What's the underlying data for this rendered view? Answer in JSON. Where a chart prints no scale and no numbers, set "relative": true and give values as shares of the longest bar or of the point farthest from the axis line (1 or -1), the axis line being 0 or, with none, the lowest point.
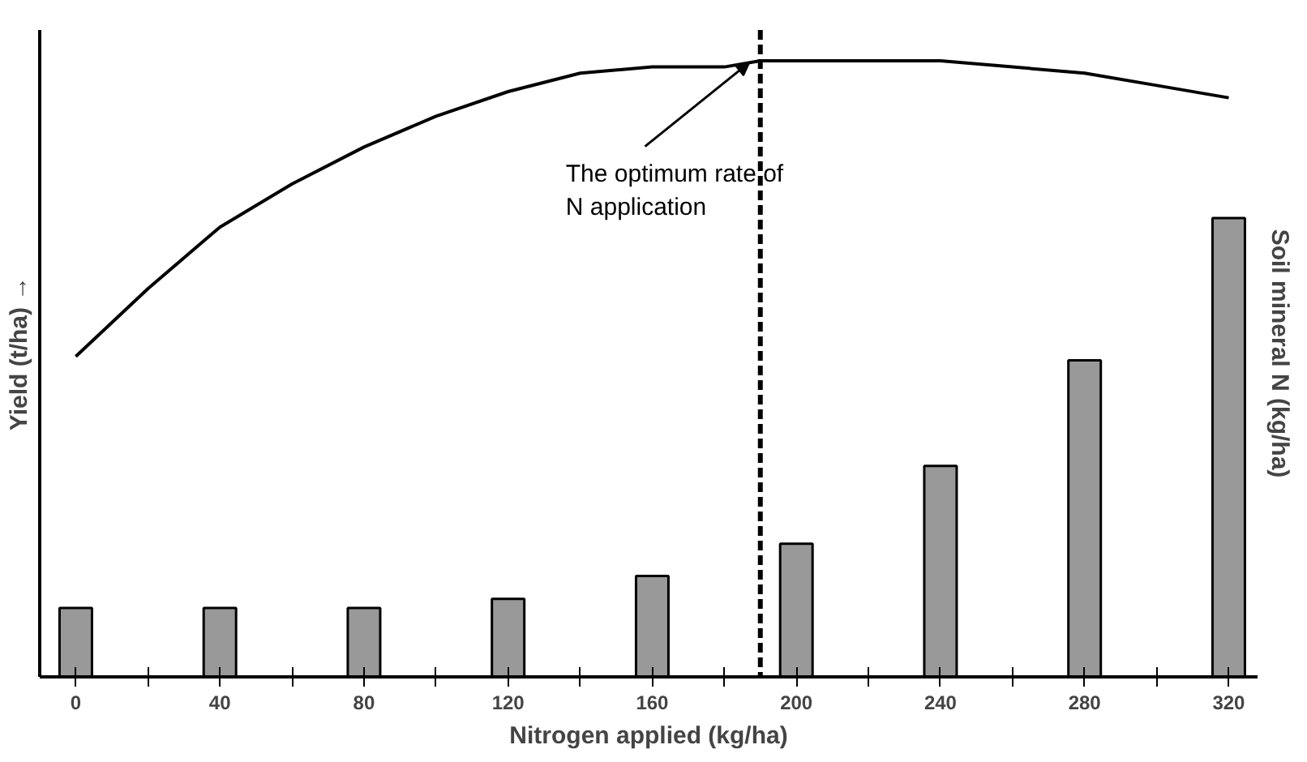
{
  "chart_data": {
    "type": "bar",
    "relative": true,
    "xlabel": "Nitrogen applied (kg/ha)",
    "ylabel": "Yield (t/ha) →",
    "y2label": "Soil mineral N (kg/ha)",
    "xlim": [
      -10,
      328
    ],
    "xticks": [
      0,
      40,
      80,
      120,
      160,
      200,
      240,
      280,
      320
    ],
    "grid": false,
    "x": [
      0,
      40,
      80,
      120,
      160,
      200,
      240,
      280,
      320
    ],
    "series": [
      {
        "type": "line",
        "color": "#000000",
        "x": [
          0,
          20,
          40,
          60,
          80,
          100,
          120,
          140,
          160,
          180,
          190,
          220,
          240,
          260,
          280,
          300,
          320
        ],
        "values": [
          0.52,
          0.63,
          0.73,
          0.8,
          0.86,
          0.91,
          0.95,
          0.98,
          0.99,
          0.99,
          1.0,
          1.0,
          1.0,
          0.99,
          0.98,
          0.96,
          0.94
        ]
      },
      {
        "axis": "y2",
        "color": "#999999",
        "values": [
          0.15,
          0.15,
          0.15,
          0.17,
          0.22,
          0.29,
          0.46,
          0.69,
          1.0
        ]
      }
    ],
    "ref_lines": [
      {
        "axis": "x",
        "value": 190,
        "color": "#000000",
        "line_style": "dashed"
      }
    ],
    "annotations": [
      "The optimum rate of\nN application"
    ]
  }
}
